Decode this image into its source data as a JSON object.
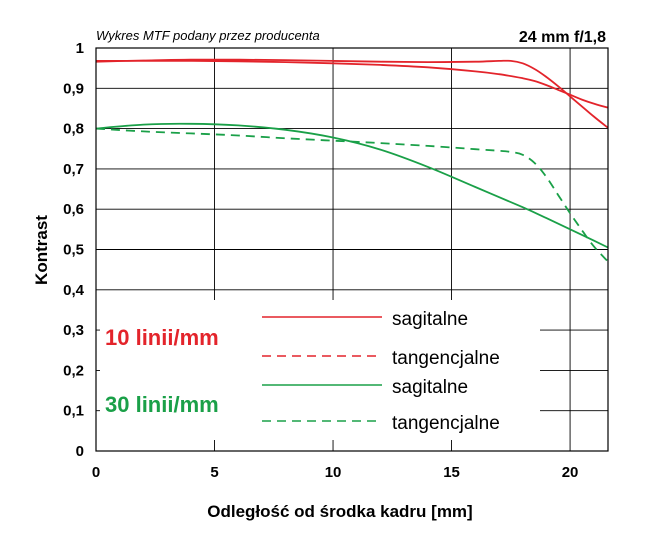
{
  "chart_data": {
    "type": "line",
    "title_left": "Wykres MTF podany przez producenta",
    "title_right": "24 mm f/1,8",
    "xlabel": "Odległość od środka kadru [mm]",
    "ylabel": "Kontrast",
    "xlim": [
      0,
      21.6
    ],
    "ylim": [
      0,
      1
    ],
    "xticks": [
      0,
      5,
      10,
      15,
      20
    ],
    "xtick_labels": [
      "0",
      "5",
      "10",
      "15",
      "20"
    ],
    "yticks": [
      0,
      0.1,
      0.2,
      0.3,
      0.4,
      0.5,
      0.6,
      0.7,
      0.8,
      0.9,
      1
    ],
    "ytick_labels": [
      "0",
      "0,1",
      "0,2",
      "0,3",
      "0,4",
      "0,5",
      "0,6",
      "0,7",
      "0,8",
      "0,9",
      "1"
    ],
    "grid": true,
    "legend": {
      "groups": [
        {
          "label": "10 linii/mm",
          "color": "#e3242b",
          "entries": [
            "sagitalne",
            "tangencjalne"
          ]
        },
        {
          "label": "30 linii/mm",
          "color": "#1aa048",
          "entries": [
            "sagitalne",
            "tangencjalne"
          ]
        }
      ]
    },
    "series": [
      {
        "group": "10 linii/mm",
        "kind": "sagitalne",
        "color": "#e3242b",
        "dashed": false,
        "x": [
          0,
          2,
          4,
          6,
          8,
          10,
          12,
          14,
          16,
          17,
          18,
          18.5,
          19,
          19.5,
          20,
          20.5,
          21,
          21.6
        ],
        "y": [
          0.968,
          0.968,
          0.968,
          0.967,
          0.965,
          0.962,
          0.958,
          0.952,
          0.942,
          0.935,
          0.925,
          0.918,
          0.908,
          0.896,
          0.884,
          0.872,
          0.862,
          0.852
        ]
      },
      {
        "group": "10 linii/mm",
        "kind": "tangencjalne",
        "color": "#e3242b",
        "dashed": false,
        "x": [
          0,
          2,
          4,
          6,
          8,
          10,
          12,
          14,
          16,
          17,
          17.5,
          18,
          18.5,
          19,
          19.5,
          20,
          20.5,
          21,
          21.6
        ],
        "y": [
          0.966,
          0.969,
          0.971,
          0.971,
          0.97,
          0.968,
          0.966,
          0.965,
          0.966,
          0.968,
          0.968,
          0.962,
          0.948,
          0.928,
          0.905,
          0.88,
          0.855,
          0.83,
          0.802
        ]
      },
      {
        "group": "30 linii/mm",
        "kind": "sagitalne",
        "color": "#1aa048",
        "dashed": false,
        "x": [
          0,
          2,
          4,
          6,
          8,
          10,
          12,
          14,
          16,
          18,
          19,
          20,
          21,
          21.6
        ],
        "y": [
          0.8,
          0.81,
          0.812,
          0.808,
          0.797,
          0.778,
          0.748,
          0.705,
          0.655,
          0.605,
          0.578,
          0.55,
          0.522,
          0.505
        ]
      },
      {
        "group": "30 linii/mm",
        "kind": "tangencjalne",
        "color": "#1aa048",
        "dashed": true,
        "x": [
          0,
          2,
          4,
          6,
          8,
          10,
          12,
          14,
          16,
          17,
          17.5,
          18,
          18.5,
          19,
          19.5,
          20,
          20.5,
          21,
          21.6
        ],
        "y": [
          0.8,
          0.793,
          0.788,
          0.783,
          0.776,
          0.77,
          0.764,
          0.757,
          0.749,
          0.745,
          0.742,
          0.735,
          0.715,
          0.68,
          0.635,
          0.59,
          0.548,
          0.508,
          0.47
        ]
      }
    ]
  }
}
